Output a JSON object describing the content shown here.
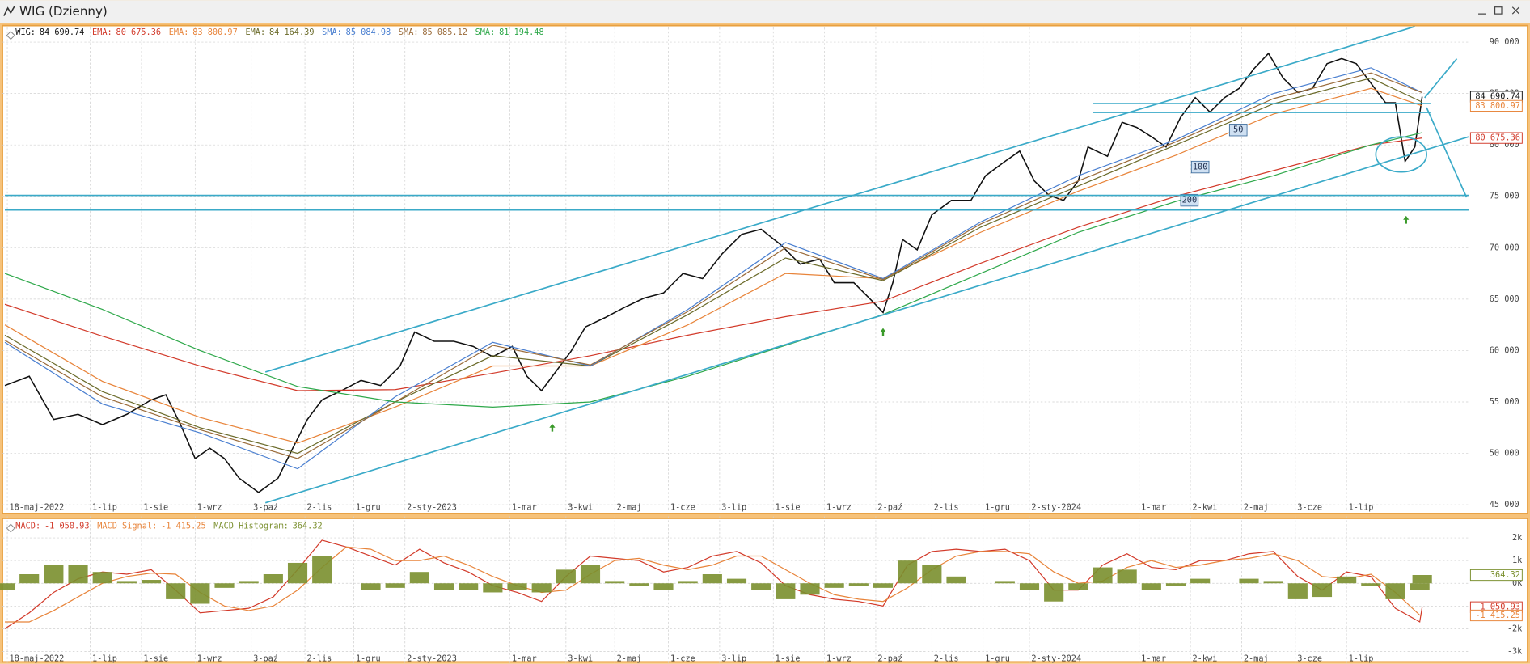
{
  "window_title": "WIG (Dzienny)",
  "chart_data": [
    {
      "type": "line",
      "grid": true,
      "xlim": [
        -1,
        600
      ],
      "ylim": [
        44340,
        90660
      ],
      "xticks": [
        {
          "value": 1,
          "label": "18-maj-2022"
        },
        {
          "value": 35,
          "label": "1-lip"
        },
        {
          "value": 56,
          "label": "1-sie"
        },
        {
          "value": 78,
          "label": "1-wrz"
        },
        {
          "value": 101,
          "label": "3-paź"
        },
        {
          "value": 123,
          "label": "2-lis"
        },
        {
          "value": 143,
          "label": "1-gru"
        },
        {
          "value": 164,
          "label": "2-sty-2023"
        },
        {
          "value": 207,
          "label": "1-mar"
        },
        {
          "value": 230,
          "label": "3-kwi"
        },
        {
          "value": 250,
          "label": "2-maj"
        },
        {
          "value": 272,
          "label": "1-cze"
        },
        {
          "value": 293,
          "label": "3-lip"
        },
        {
          "value": 315,
          "label": "1-sie"
        },
        {
          "value": 336,
          "label": "1-wrz"
        },
        {
          "value": 357,
          "label": "2-paź"
        },
        {
          "value": 380,
          "label": "2-lis"
        },
        {
          "value": 401,
          "label": "1-gru"
        },
        {
          "value": 420,
          "label": "2-sty-2024"
        },
        {
          "value": 465,
          "label": "1-mar"
        },
        {
          "value": 486,
          "label": "2-kwi"
        },
        {
          "value": 507,
          "label": "2-maj"
        },
        {
          "value": 529,
          "label": "3-cze"
        },
        {
          "value": 550,
          "label": "1-lip"
        }
      ],
      "yticks": [
        {
          "value": 45000,
          "label": "45 000"
        },
        {
          "value": 50000,
          "label": "50 000"
        },
        {
          "value": 55000,
          "label": "55 000"
        },
        {
          "value": 60000,
          "label": "60 000"
        },
        {
          "value": 65000,
          "label": "65 000"
        },
        {
          "value": 70000,
          "label": "70 000"
        },
        {
          "value": 75000,
          "label": "75 000"
        },
        {
          "value": 80000,
          "label": "80 000"
        },
        {
          "value": 85000,
          "label": "85 000"
        },
        {
          "value": 90000,
          "label": "90 000"
        }
      ],
      "annotations": [
        "50",
        "100",
        "200"
      ],
      "series": [
        {
          "name": "WIG:",
          "color": "#111111",
          "width": 1.3,
          "tag": true,
          "legend_value": {
            "value": 84690.74,
            "label": "84 690.74"
          },
          "x": [
            0,
            10,
            20,
            30,
            40,
            50,
            60,
            66,
            72,
            78,
            84,
            90,
            96,
            104,
            112,
            118,
            124,
            130,
            138,
            146,
            154,
            162,
            168,
            176,
            184,
            192,
            200,
            208,
            214,
            220,
            226,
            232,
            238,
            246,
            254,
            262,
            270,
            278,
            286,
            294,
            302,
            310,
            318,
            326,
            334,
            340,
            348,
            356,
            360,
            364,
            368,
            374,
            380,
            388,
            396,
            402,
            410,
            416,
            422,
            428,
            434,
            440,
            444,
            452,
            458,
            464,
            470,
            476,
            482,
            488,
            494,
            500,
            506,
            512,
            518,
            524,
            530,
            536,
            542,
            548,
            554,
            560,
            566,
            570,
            574,
            578,
            581
          ],
          "values": [
            56600,
            57500,
            53300,
            53800,
            52800,
            53800,
            55200,
            55700,
            52800,
            49500,
            50500,
            49500,
            47600,
            46200,
            47600,
            50500,
            53300,
            55200,
            56100,
            57100,
            56600,
            58500,
            61800,
            60900,
            60900,
            60400,
            59400,
            60400,
            57500,
            56100,
            58000,
            59900,
            62300,
            63200,
            64200,
            65100,
            65600,
            67500,
            67000,
            69400,
            71300,
            71800,
            70300,
            68400,
            68900,
            66600,
            66600,
            64700,
            63700,
            66600,
            70800,
            69800,
            73200,
            74600,
            74600,
            77000,
            78400,
            79400,
            76500,
            75100,
            74600,
            76500,
            79800,
            78900,
            82200,
            81700,
            80800,
            79800,
            82700,
            84600,
            83200,
            84600,
            85500,
            87400,
            88900,
            86500,
            85100,
            85500,
            87900,
            88400,
            87900,
            86000,
            84100,
            84100,
            78400,
            79800,
            84690.74
          ]
        },
        {
          "name": "EMA:",
          "color": "#d23a2a",
          "width": 1,
          "tag": true,
          "legend_value": {
            "value": 80675.36,
            "label": "80 675.36"
          },
          "x": [
            0,
            40,
            80,
            120,
            160,
            200,
            240,
            280,
            320,
            360,
            400,
            440,
            480,
            520,
            560,
            581
          ],
          "values": [
            64500,
            61400,
            58500,
            56100,
            56200,
            57800,
            59500,
            61500,
            63300,
            64800,
            68500,
            72000,
            75000,
            77500,
            80000,
            80675.36
          ]
        },
        {
          "name": "EMA:",
          "color": "#e8843a",
          "width": 1,
          "tag": true,
          "legend_value": {
            "value": 83800.97,
            "label": "83 800.97"
          },
          "x": [
            0,
            40,
            80,
            120,
            160,
            200,
            240,
            280,
            320,
            360,
            400,
            440,
            480,
            520,
            560,
            581
          ],
          "values": [
            62500,
            57000,
            53500,
            51000,
            54500,
            58500,
            58500,
            62500,
            67500,
            67000,
            71500,
            75500,
            79000,
            83000,
            85500,
            83800.97
          ]
        },
        {
          "name": "EMA:",
          "color": "#6b6b2a",
          "width": 1,
          "legend_value": {
            "value": 84164.39,
            "label": "84 164.39"
          },
          "x": [
            0,
            40,
            80,
            120,
            160,
            200,
            240,
            280,
            320,
            360,
            400,
            440,
            480,
            520,
            560,
            581
          ],
          "values": [
            61500,
            56000,
            52500,
            50000,
            55000,
            59500,
            58500,
            63500,
            69000,
            66800,
            72000,
            76000,
            80000,
            84000,
            86500,
            84164.39
          ]
        },
        {
          "name": "SMA:",
          "color": "#4a7fd0",
          "width": 1,
          "legend_value": {
            "value": 85084.98,
            "label": "85 084.98"
          },
          "x": [
            0,
            40,
            80,
            120,
            160,
            200,
            240,
            280,
            320,
            360,
            400,
            440,
            480,
            520,
            560,
            581
          ],
          "values": [
            60800,
            54800,
            52000,
            48500,
            55500,
            60800,
            58500,
            64000,
            70500,
            67000,
            72500,
            77000,
            80500,
            85000,
            87500,
            85084.98
          ]
        },
        {
          "name": "SMA:",
          "color": "#9a6b3a",
          "width": 1,
          "legend_value": {
            "value": 85085.12,
            "label": "85 085.12"
          },
          "x": [
            0,
            40,
            80,
            120,
            160,
            200,
            240,
            280,
            320,
            360,
            400,
            440,
            480,
            520,
            560,
            581
          ],
          "values": [
            61000,
            55500,
            52300,
            49500,
            55000,
            60500,
            58600,
            63800,
            70000,
            66900,
            72300,
            76500,
            80300,
            84500,
            87000,
            85085.12
          ]
        },
        {
          "name": "SMA:",
          "color": "#2ea84a",
          "width": 1,
          "legend_value": {
            "value": 81194.48,
            "label": "81 194.48"
          },
          "x": [
            0,
            40,
            80,
            120,
            160,
            200,
            240,
            280,
            320,
            360,
            400,
            440,
            480,
            520,
            560,
            581
          ],
          "values": [
            67500,
            64000,
            60000,
            56500,
            55000,
            54500,
            55000,
            57500,
            60500,
            63500,
            67500,
            71500,
            74500,
            77000,
            80000,
            81194.48
          ]
        }
      ]
    },
    {
      "type": "line",
      "grid": true,
      "ylim": [
        -3500,
        2600
      ],
      "yticks": [
        {
          "value": -3000,
          "label": "-3k"
        },
        {
          "value": -2000,
          "label": "-2k"
        },
        {
          "value": -1000,
          "label": "-1k"
        },
        {
          "value": 0,
          "label": "0k"
        },
        {
          "value": 1000,
          "label": "1k"
        },
        {
          "value": 2000,
          "label": "2k"
        }
      ],
      "x": [
        0,
        10,
        20,
        30,
        40,
        50,
        60,
        70,
        80,
        90,
        100,
        110,
        120,
        130,
        140,
        150,
        160,
        170,
        180,
        190,
        200,
        210,
        220,
        230,
        240,
        250,
        260,
        270,
        280,
        290,
        300,
        310,
        320,
        330,
        340,
        350,
        360,
        370,
        380,
        390,
        400,
        410,
        420,
        430,
        440,
        450,
        460,
        470,
        480,
        490,
        500,
        510,
        520,
        530,
        540,
        550,
        560,
        570,
        580,
        581
      ],
      "series": [
        {
          "name": "MACD:",
          "color": "#d23a2a",
          "width": 1,
          "tag": true,
          "legend_value": {
            "value": -1050.93,
            "label": "-1 050.93"
          },
          "values": [
            -2000,
            -1300,
            -400,
            200,
            500,
            400,
            600,
            -300,
            -1300,
            -1200,
            -1100,
            -600,
            600,
            1900,
            1600,
            1200,
            800,
            1500,
            900,
            500,
            -100,
            -400,
            -800,
            300,
            1200,
            1100,
            1000,
            500,
            700,
            1200,
            1400,
            900,
            -100,
            -500,
            -700,
            -800,
            -1000,
            800,
            1400,
            1500,
            1400,
            1500,
            1000,
            -300,
            -300,
            800,
            1300,
            700,
            600,
            1000,
            1000,
            1300,
            1400,
            300,
            -300,
            500,
            300,
            -1100,
            -1700,
            -1050.93
          ]
        },
        {
          "name": "MACD Signal:",
          "color": "#e8843a",
          "width": 1,
          "tag": true,
          "legend_value": {
            "value": -1415.25,
            "label": "-1 415.25"
          },
          "values": [
            -1700,
            -1700,
            -1200,
            -600,
            0,
            300,
            450,
            400,
            -400,
            -1000,
            -1200,
            -1000,
            -300,
            700,
            1600,
            1500,
            1000,
            1000,
            1200,
            800,
            300,
            -100,
            -400,
            -300,
            400,
            1000,
            1100,
            800,
            600,
            800,
            1200,
            1200,
            600,
            0,
            -500,
            -700,
            -800,
            -200,
            600,
            1200,
            1400,
            1400,
            1300,
            500,
            0,
            100,
            700,
            1000,
            700,
            800,
            1000,
            1100,
            1300,
            1000,
            300,
            200,
            400,
            -400,
            -1400,
            -1415.25
          ]
        },
        {
          "name": "MACD Histogram:",
          "color": "#7a8f2e",
          "type": "bar",
          "tag": true,
          "legend_value": {
            "value": 364.32,
            "label": "364.32"
          },
          "values": [
            -300,
            400,
            800,
            800,
            500,
            100,
            150,
            -700,
            -900,
            -200,
            100,
            400,
            900,
            1200,
            0,
            -300,
            -200,
            500,
            -300,
            -300,
            -400,
            -300,
            -400,
            600,
            800,
            100,
            -100,
            -300,
            100,
            400,
            200,
            -300,
            -700,
            -500,
            -200,
            -100,
            -200,
            1000,
            800,
            300,
            0,
            100,
            -300,
            -800,
            -300,
            700,
            600,
            -300,
            -100,
            200,
            0,
            200,
            100,
            -700,
            -600,
            300,
            -100,
            -700,
            -300,
            364.32
          ]
        }
      ]
    }
  ]
}
